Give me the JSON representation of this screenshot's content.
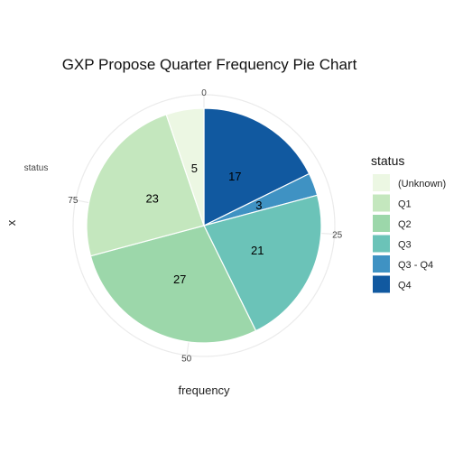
{
  "chart_data": {
    "type": "pie",
    "title": "GXP Propose Quarter Frequency Pie Chart",
    "xlabel": "frequency",
    "ylabel": "x",
    "y_tick_label": "status",
    "radial_ticks": [
      "0",
      "25",
      "50",
      "75"
    ],
    "total": 96,
    "legend": {
      "title": "status",
      "position": "right"
    },
    "slices": [
      {
        "label": "Q4",
        "value": 17,
        "color": "#1159a0"
      },
      {
        "label": "Q3 - Q4",
        "value": 3,
        "color": "#3f92c3"
      },
      {
        "label": "Q3",
        "value": 21,
        "color": "#6bc3b8"
      },
      {
        "label": "Q2",
        "value": 27,
        "color": "#9cd7aa"
      },
      {
        "label": "Q1",
        "value": 23,
        "color": "#c4e7be"
      },
      {
        "label": "(Unknown)",
        "value": 5,
        "color": "#ecf7e3"
      }
    ],
    "legend_order": [
      "(Unknown)",
      "Q1",
      "Q2",
      "Q3",
      "Q3 - Q4",
      "Q4"
    ]
  }
}
